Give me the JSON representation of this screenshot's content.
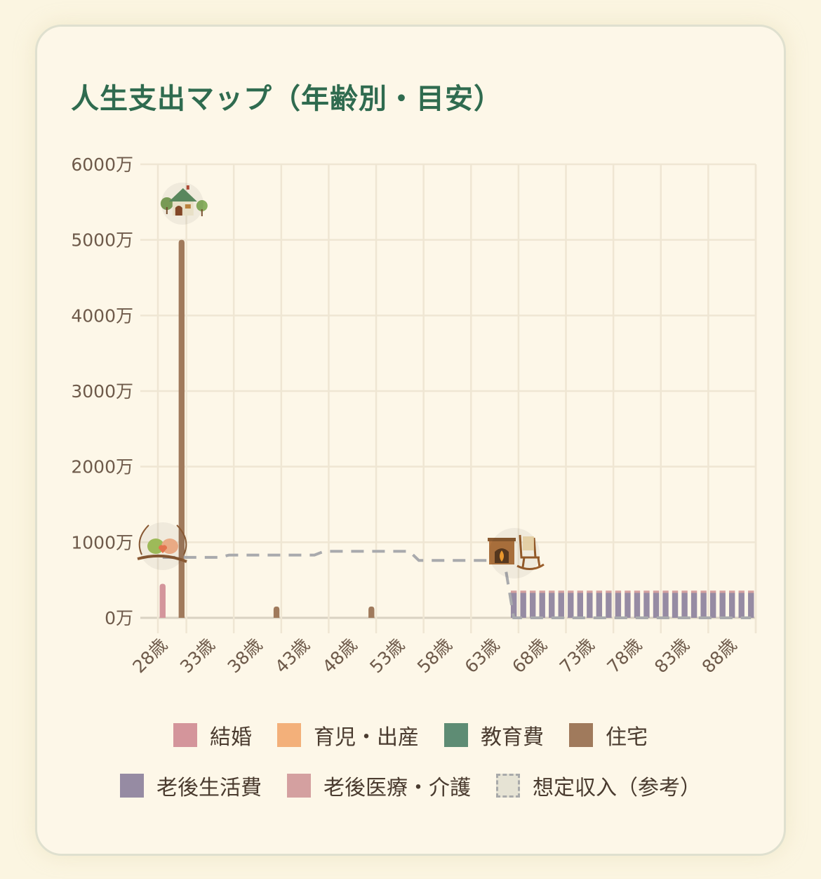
{
  "title": "人生支出マップ（年齢別・目安）",
  "colors": {
    "title": "#2f6b4f",
    "marriage": "#d4959b",
    "childbirth": "#f3b07a",
    "education": "#5e8c74",
    "housing": "#a07a5c",
    "retirement_living": "#968ba3",
    "retirement_medical": "#d4a0a0",
    "income": "#a9aaad",
    "grid": "#efe6d3",
    "axis": "#d9d2c2"
  },
  "icons": [
    {
      "name": "cottage-house-icon",
      "age": 30,
      "value": 5500
    },
    {
      "name": "love-birds-icon",
      "age": 28,
      "value": 800
    },
    {
      "name": "fireplace-rocking-chair-icon",
      "age": 65,
      "value": 800
    }
  ],
  "legend": [
    {
      "key": "marriage",
      "label": "結婚"
    },
    {
      "key": "childbirth",
      "label": "育児・出産"
    },
    {
      "key": "education",
      "label": "教育費"
    },
    {
      "key": "housing",
      "label": "住宅"
    },
    {
      "key": "retirement_living",
      "label": "老後生活費"
    },
    {
      "key": "retirement_medical",
      "label": "老後医療・介護"
    },
    {
      "key": "income",
      "label": "想定収入（参考）"
    }
  ],
  "chart_data": {
    "type": "bar",
    "stacked": true,
    "title": "人生支出マップ（年齢別・目安）",
    "xlabel": "",
    "ylabel": "",
    "unit": "万",
    "ylim": [
      0,
      6000
    ],
    "yticks": [
      "0万",
      "1000万",
      "2000万",
      "3000万",
      "4000万",
      "5000万",
      "6000万"
    ],
    "x_start_age": 28,
    "x_end_age": 90,
    "xtick_labels": [
      "28歳",
      "33歳",
      "38歳",
      "43歳",
      "48歳",
      "53歳",
      "58歳",
      "63歳",
      "68歳",
      "73歳",
      "78歳",
      "83歳",
      "88歳"
    ],
    "grid": true,
    "legend_position": "bottom",
    "series": [
      {
        "name": "結婚",
        "key": "marriage",
        "points": [
          {
            "age": 28,
            "value": 450
          }
        ]
      },
      {
        "name": "育児・出産",
        "key": "childbirth",
        "points": []
      },
      {
        "name": "教育費",
        "key": "education",
        "points": []
      },
      {
        "name": "住宅",
        "key": "housing",
        "points": [
          {
            "age": 30,
            "value": 5000
          },
          {
            "age": 40,
            "value": 150
          },
          {
            "age": 50,
            "value": 150
          }
        ]
      },
      {
        "name": "老後生活費",
        "key": "retirement_living",
        "range": [
          65,
          90
        ],
        "value": 330
      },
      {
        "name": "老後医療・介護",
        "key": "retirement_medical",
        "range": [
          65,
          90
        ],
        "value": 30
      },
      {
        "name": "想定収入（参考）",
        "key": "income",
        "type": "line",
        "dashed": true,
        "steps": [
          {
            "from": 28,
            "to": 34,
            "value": 800
          },
          {
            "from": 35,
            "to": 44,
            "value": 830
          },
          {
            "from": 45,
            "to": 54,
            "value": 880
          },
          {
            "from": 55,
            "to": 64,
            "value": 760
          },
          {
            "from": 65,
            "to": 90,
            "value": 0
          }
        ]
      }
    ]
  }
}
